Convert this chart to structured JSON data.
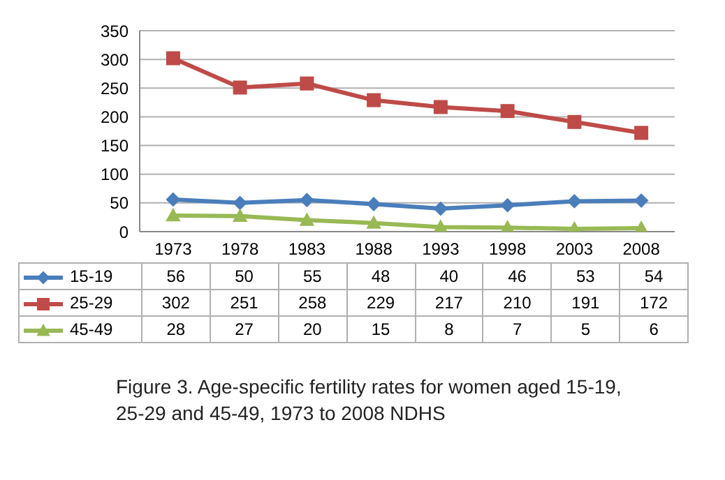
{
  "chart_data": {
    "type": "line",
    "categories": [
      "1973",
      "1978",
      "1983",
      "1988",
      "1993",
      "1998",
      "2003",
      "2008"
    ],
    "series": [
      {
        "name": "15-19",
        "color": "#4a7ebb",
        "marker": "diamond",
        "values": [
          56,
          50,
          55,
          48,
          40,
          46,
          53,
          54
        ]
      },
      {
        "name": "25-29",
        "color": "#be4b48",
        "marker": "square",
        "values": [
          302,
          251,
          258,
          229,
          217,
          210,
          191,
          172
        ]
      },
      {
        "name": "45-49",
        "color": "#98b954",
        "marker": "triangle",
        "values": [
          28,
          27,
          20,
          15,
          8,
          7,
          5,
          6
        ]
      }
    ],
    "ylim": [
      0,
      350
    ],
    "yticks": [
      0,
      50,
      100,
      150,
      200,
      250,
      300,
      350
    ],
    "grid": "y",
    "legend": "bottom",
    "data_labels": true,
    "annotations": [
      "Figure 3. Age-specific fertility rates for women aged 15-19, 25-29 and 45-49, 1973 to 2008 NDHS"
    ]
  }
}
